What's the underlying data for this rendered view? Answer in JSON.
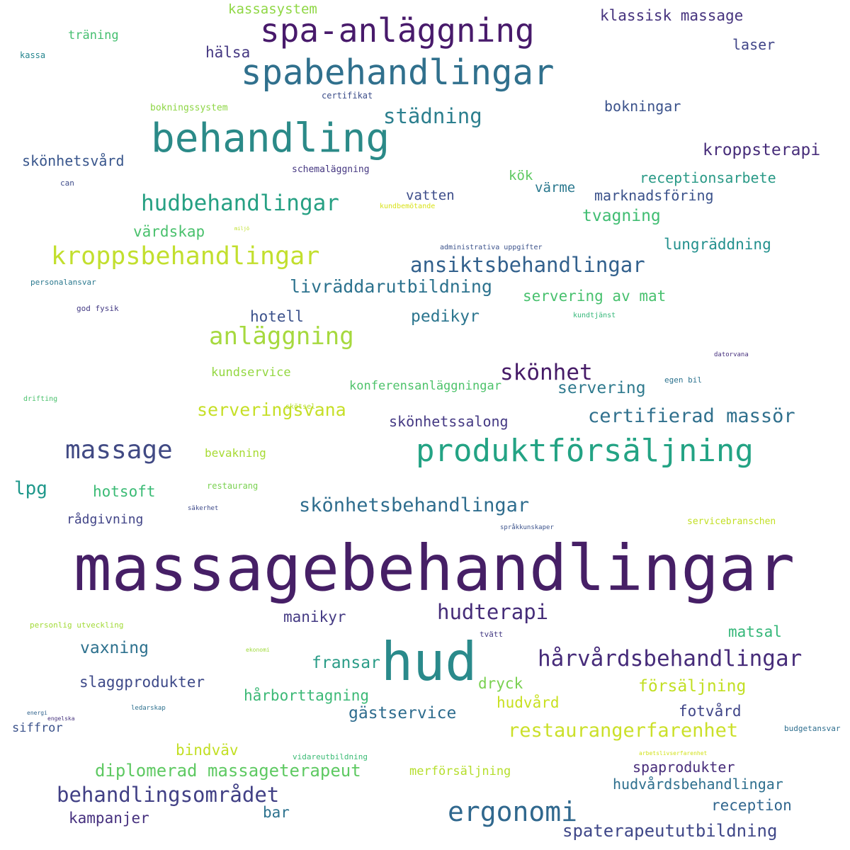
{
  "words": [
    {
      "text": "massagebehandlingar",
      "color": "#461f66"
    },
    {
      "text": "hud",
      "color": "#2a8a8b"
    },
    {
      "text": "behandling",
      "color": "#2b8a88"
    },
    {
      "text": "spabehandlingar",
      "color": "#30708d"
    },
    {
      "text": "produktförsäljning",
      "color": "#23a384"
    },
    {
      "text": "spa-anläggning",
      "color": "#481a6b"
    },
    {
      "text": "kroppsbehandlingar",
      "color": "#c2df2e"
    },
    {
      "text": "massage",
      "color": "#414a84"
    },
    {
      "text": "ergonomi",
      "color": "#30688e"
    },
    {
      "text": "hårvårdsbehandlingar",
      "color": "#472c7a"
    },
    {
      "text": "hudbehandlingar",
      "color": "#26a083"
    },
    {
      "text": "ansiktsbehandlingar",
      "color": "#33618d"
    },
    {
      "text": "anläggning",
      "color": "#a6d93e"
    },
    {
      "text": "skönhetsbehandlingar",
      "color": "#2f6d8e"
    },
    {
      "text": "skönhet",
      "color": "#461b67"
    },
    {
      "text": "behandlingsområdet",
      "color": "#414085"
    },
    {
      "text": "restaurangerfarenhet",
      "color": "#cbe02a"
    },
    {
      "text": "städning",
      "color": "#2c7f8e"
    },
    {
      "text": "hudterapi",
      "color": "#462d79"
    },
    {
      "text": "certifierad massör",
      "color": "#30708d"
    },
    {
      "text": "diplomerad massageterapeut",
      "color": "#5ec962"
    },
    {
      "text": "serveringsvana",
      "color": "#c6df27"
    },
    {
      "text": "spaterapeututbildning",
      "color": "#3f4788"
    },
    {
      "text": "livräddarutbildning",
      "color": "#2c728e"
    },
    {
      "text": "kroppsterapi",
      "color": "#472d7a"
    },
    {
      "text": "klassisk massage",
      "color": "#46337e"
    },
    {
      "text": "hårborttagning",
      "color": "#3cb976"
    },
    {
      "text": "servering",
      "color": "#2f7a8e"
    },
    {
      "text": "försäljning",
      "color": "#c2df23"
    },
    {
      "text": "servering av mat",
      "color": "#48c16e"
    },
    {
      "text": "lungräddning",
      "color": "#22908d"
    },
    {
      "text": "marknadsföring",
      "color": "#3b528b"
    },
    {
      "text": "receptionsarbete",
      "color": "#2a9a87"
    },
    {
      "text": "tvagning",
      "color": "#40bd72"
    },
    {
      "text": "vaxning",
      "color": "#2d718e"
    },
    {
      "text": "slaggprodukter",
      "color": "#3e4a89"
    },
    {
      "text": "gästservice",
      "color": "#2e6c8e"
    },
    {
      "text": "hudvårdsbehandlingar",
      "color": "#2e6f8e"
    },
    {
      "text": "spaprodukter",
      "color": "#472c7a"
    },
    {
      "text": "reception",
      "color": "#31668e"
    },
    {
      "text": "kampanjer",
      "color": "#46307e"
    },
    {
      "text": "hotell",
      "color": "#3b518b"
    },
    {
      "text": "pedikyr",
      "color": "#2b758e"
    },
    {
      "text": "manikyr",
      "color": "#443a83"
    },
    {
      "text": "fransar",
      "color": "#2a9c87"
    },
    {
      "text": "dryck",
      "color": "#7ad151"
    },
    {
      "text": "hudvård",
      "color": "#c8e020"
    },
    {
      "text": "fotvård",
      "color": "#404688"
    },
    {
      "text": "matsal",
      "color": "#35b779"
    },
    {
      "text": "bindväv",
      "color": "#c2df23"
    },
    {
      "text": "bar",
      "color": "#2c728e"
    },
    {
      "text": "lpg",
      "color": "#1f988b"
    },
    {
      "text": "hotsoft",
      "color": "#3bbb75"
    },
    {
      "text": "hälsa",
      "color": "#453882"
    },
    {
      "text": "kassasystem",
      "color": "#8fd744"
    },
    {
      "text": "laser",
      "color": "#404588"
    },
    {
      "text": "bokningar",
      "color": "#3b528b"
    },
    {
      "text": "skönhetsvård",
      "color": "#39568c"
    },
    {
      "text": "skönhetssalong",
      "color": "#443983"
    },
    {
      "text": "värdskap",
      "color": "#4ac16d"
    },
    {
      "text": "vatten",
      "color": "#3d4d8a"
    },
    {
      "text": "kök",
      "color": "#5ec962"
    },
    {
      "text": "värme",
      "color": "#2a788e"
    },
    {
      "text": "kundservice",
      "color": "#93d741"
    },
    {
      "text": "konferensanläggningar",
      "color": "#4ec36b"
    },
    {
      "text": "rådgivning",
      "color": "#414487"
    },
    {
      "text": "siffror",
      "color": "#3b528b"
    },
    {
      "text": "merförsäljning",
      "color": "#b5de2b"
    },
    {
      "text": "träning",
      "color": "#45bf70"
    },
    {
      "text": "bevakning",
      "color": "#a8db34"
    },
    {
      "text": "kassa",
      "color": "#25858e"
    },
    {
      "text": "certifikat",
      "color": "#3d4e8a"
    },
    {
      "text": "bokningssystem",
      "color": "#8ed645"
    },
    {
      "text": "schemaläggning",
      "color": "#453781"
    },
    {
      "text": "can",
      "color": "#3e4c8a"
    },
    {
      "text": "kundbemötande",
      "color": "#d8e219"
    },
    {
      "text": "miljö",
      "color": "#bddf26"
    },
    {
      "text": "administrativa uppgifter",
      "color": "#3b528b"
    },
    {
      "text": "personalansvar",
      "color": "#2a788e"
    },
    {
      "text": "god fysik",
      "color": "#443b84"
    },
    {
      "text": "kundtjänst",
      "color": "#35b779"
    },
    {
      "text": "datorvana",
      "color": "#46307e"
    },
    {
      "text": "egen bil",
      "color": "#2c728e"
    },
    {
      "text": "drifting",
      "color": "#4ac16d"
    },
    {
      "text": "skötsel",
      "color": "#b5de2b"
    },
    {
      "text": "restaurang",
      "color": "#7ad151"
    },
    {
      "text": "säkerhet",
      "color": "#3e4a89"
    },
    {
      "text": "språkkunskaper",
      "color": "#3b528b"
    },
    {
      "text": "servicebranschen",
      "color": "#c2df23"
    },
    {
      "text": "personlig utveckling",
      "color": "#a2da37"
    },
    {
      "text": "tvätt",
      "color": "#443a83"
    },
    {
      "text": "ekonomi",
      "color": "#9fda3a"
    },
    {
      "text": "energi",
      "color": "#32648e"
    },
    {
      "text": "engelska",
      "color": "#46337e"
    },
    {
      "text": "ledarskap",
      "color": "#2d708e"
    },
    {
      "text": "vidareutbildning",
      "color": "#3bbb75"
    },
    {
      "text": "arbetslivserfarenhet",
      "color": "#d2e21b"
    },
    {
      "text": "budgetansvar",
      "color": "#2e6e8e"
    }
  ]
}
